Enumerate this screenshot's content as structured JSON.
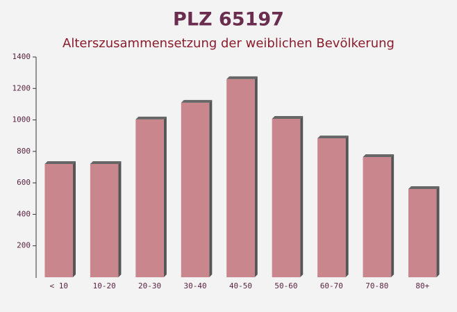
{
  "chart_data": {
    "type": "bar",
    "title": "PLZ 65197",
    "subtitle": "Alterszusammensetzung der weiblichen Bevölkerung",
    "categories": [
      "< 10",
      "10-20",
      "20-30",
      "30-40",
      "40-50",
      "50-60",
      "60-70",
      "70-80",
      "80+"
    ],
    "values": [
      720,
      720,
      1003,
      1109,
      1259,
      1007,
      883,
      764,
      561
    ],
    "color": "#c47a82",
    "ylim": [
      0,
      1400
    ],
    "yticks": [
      200,
      400,
      600,
      800,
      1000,
      1200,
      1400
    ],
    "grid": false
  }
}
